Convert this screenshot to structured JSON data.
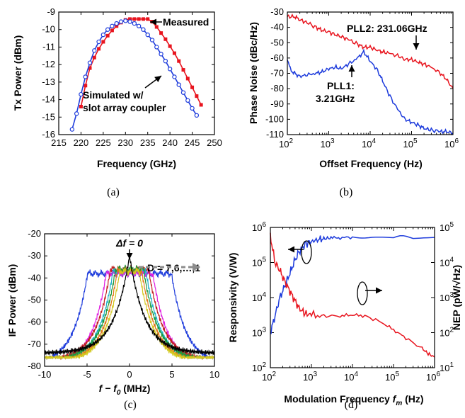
{
  "chart_data": [
    {
      "id": "a",
      "type": "line",
      "caption": "(a)",
      "xlabel": "Frequency (GHz)",
      "ylabel": "Tx Power (dBm)",
      "xlim": [
        215,
        250
      ],
      "ylim": [
        -16,
        -9
      ],
      "xticks": [
        "215",
        "220",
        "225",
        "230",
        "235",
        "240",
        "245",
        "250"
      ],
      "yticks": [
        "-9",
        "-10",
        "-11",
        "-12",
        "-13",
        "-14",
        "-15",
        "-16"
      ],
      "series": [
        {
          "name": "Measured",
          "color": "#e8141e",
          "marker": "square",
          "x": [
            220,
            221,
            222,
            223,
            224,
            225,
            226,
            227,
            228,
            229,
            230,
            231,
            232,
            233,
            234,
            235,
            236,
            237,
            238,
            239,
            240,
            241,
            242,
            243,
            244,
            245,
            246,
            247
          ],
          "y": [
            -14.4,
            -13.2,
            -12.2,
            -11.6,
            -11.1,
            -10.7,
            -10.35,
            -10.05,
            -9.8,
            -9.6,
            -9.45,
            -9.4,
            -9.4,
            -9.4,
            -9.4,
            -9.4,
            -9.55,
            -9.85,
            -10.2,
            -10.55,
            -10.95,
            -11.35,
            -11.8,
            -12.3,
            -12.8,
            -13.3,
            -13.8,
            -14.3
          ]
        },
        {
          "name": "Simulated w/ slot array coupler",
          "color": "#1e3cdc",
          "marker": "circle",
          "x": [
            218,
            219,
            220,
            221,
            222,
            223,
            224,
            225,
            226,
            227,
            228,
            229,
            230,
            231,
            232,
            233,
            234,
            235,
            236,
            237,
            238,
            239,
            240,
            241,
            242,
            243,
            244,
            245,
            246
          ],
          "y": [
            -15.7,
            -14.8,
            -13.7,
            -12.7,
            -11.9,
            -11.2,
            -10.7,
            -10.3,
            -10.0,
            -9.8,
            -9.65,
            -9.55,
            -9.5,
            -9.55,
            -9.65,
            -9.8,
            -10.0,
            -10.3,
            -10.6,
            -11.0,
            -11.4,
            -11.8,
            -12.25,
            -12.7,
            -13.15,
            -13.6,
            -14.05,
            -14.5,
            -14.9
          ]
        }
      ],
      "annotations": [
        "Measured",
        "Simulated w/",
        "slot array coupler"
      ]
    },
    {
      "id": "b",
      "type": "line",
      "caption": "(b)",
      "xlabel": "Offset Frequency (Hz)",
      "ylabel": "Phase Noise (dBc/Hz)",
      "xscale": "log",
      "xlim": [
        100,
        1000000
      ],
      "ylim": [
        -110,
        -30
      ],
      "xticks": [
        "10^2",
        "10^3",
        "10^4",
        "10^5",
        "10^6"
      ],
      "yticks": [
        "-30",
        "-40",
        "-50",
        "-60",
        "-70",
        "-80",
        "-90",
        "-100",
        "-110"
      ],
      "series": [
        {
          "name": "PLL2: 231.06GHz",
          "color": "#e8141e",
          "x": [
            100,
            150,
            200,
            300,
            500,
            700,
            1000,
            1500,
            2000,
            3000,
            5000,
            7000,
            10000,
            15000,
            20000,
            30000,
            50000,
            70000,
            100000,
            150000,
            200000,
            300000,
            500000,
            700000,
            1000000
          ],
          "y": [
            -33,
            -33,
            -35,
            -37,
            -40,
            -42,
            -43,
            -45,
            -46,
            -48,
            -51,
            -53,
            -53,
            -55,
            -56,
            -57,
            -59,
            -61,
            -61,
            -63,
            -64,
            -66,
            -70,
            -74,
            -80
          ]
        },
        {
          "name": "PLL1: 3.21GHz",
          "color": "#1e3cdc",
          "x": [
            100,
            120,
            150,
            200,
            300,
            500,
            700,
            1000,
            1500,
            2000,
            3000,
            5000,
            7000,
            10000,
            15000,
            20000,
            30000,
            50000,
            70000,
            100000,
            150000,
            200000,
            300000,
            500000,
            700000,
            1000000
          ],
          "y": [
            -60,
            -68,
            -70,
            -72,
            -71,
            -70,
            -69,
            -67,
            -66,
            -67,
            -64,
            -60,
            -56,
            -62,
            -68,
            -75,
            -85,
            -95,
            -100,
            -102,
            -104,
            -106,
            -107,
            -108,
            -108,
            -109
          ]
        }
      ],
      "annotations": [
        "PLL2: 231.06GHz",
        "PLL1:",
        "3.21GHz"
      ]
    },
    {
      "id": "c",
      "type": "line",
      "caption": "(c)",
      "xlabel_main": "f − f",
      "xlabel_sub": "0",
      "xlabel_unit": " (MHz)",
      "ylabel": "IF Power (dBm)",
      "xlim": [
        -10,
        10
      ],
      "ylim": [
        -80,
        -20
      ],
      "xticks": [
        "-10",
        "-5",
        "0",
        "5",
        "10"
      ],
      "yticks": [
        "-20",
        "-30",
        "-40",
        "-50",
        "-60",
        "-70",
        "-80"
      ],
      "series_params": [
        {
          "name": "Δf = 0",
          "color": "#000000",
          "shoulder": 0,
          "peak": -30
        },
        {
          "name": "D = 1",
          "color": "#d2c81e",
          "shoulder": 1.1,
          "peak": -36
        },
        {
          "name": "D = 2",
          "color": "#e07a1a",
          "shoulder": 1.4,
          "peak": -36
        },
        {
          "name": "D = 3",
          "color": "#1e9a3a",
          "shoulder": 1.6,
          "peak": -35
        },
        {
          "name": "D = 4",
          "color": "#20b0c8",
          "shoulder": 1.9,
          "peak": -36
        },
        {
          "name": "D = 5",
          "color": "#c02020",
          "shoulder": 2.2,
          "peak": -35
        },
        {
          "name": "D = 6",
          "color": "#e020e0",
          "shoulder": 2.7,
          "peak": -37
        },
        {
          "name": "D = 7",
          "color": "#1e3cdc",
          "shoulder": 4.9,
          "peak": -37
        }
      ],
      "annotations": [
        "Δf = 0",
        "D = 7,6,…,1"
      ]
    },
    {
      "id": "d",
      "type": "line",
      "caption": "(d)",
      "xlabel_main": "Modulation Frequency ",
      "xlabel_var": "f",
      "xlabel_sub": "m",
      "xlabel_unit": " (Hz)",
      "ylabel": "Responsivity (V/W)",
      "ylabel_right": "NEP (pW/√Hz)",
      "xscale": "log",
      "yscale": "log",
      "xlim": [
        100,
        1000000
      ],
      "ylim": [
        100,
        1000000
      ],
      "ylim_right": [
        10,
        100000
      ],
      "xticks": [
        "10^2",
        "10^3",
        "10^4",
        "10^5",
        "10^6"
      ],
      "yticks": [
        "10^6",
        "10^5",
        "10^4",
        "10^3",
        "10^2"
      ],
      "yticks_right": [
        "10^5",
        "10^4",
        "10^3",
        "10^2",
        "10^1"
      ],
      "series": [
        {
          "name": "Responsivity",
          "color": "#1e3cdc",
          "axis": "left",
          "x": [
            100,
            130,
            170,
            220,
            300,
            400,
            500,
            700,
            1000,
            1500,
            2000,
            3000,
            5000,
            10000,
            30000,
            100000,
            300000,
            1000000
          ],
          "y": [
            1000,
            3000,
            10000,
            20000,
            50000,
            120000,
            200000,
            330000,
            400000,
            450000,
            480000,
            500000,
            510000,
            520000,
            520000,
            520000,
            520000,
            520000
          ]
        },
        {
          "name": "NEP",
          "color": "#e8141e",
          "axis": "right",
          "x": [
            100,
            110,
            130,
            170,
            220,
            300,
            400,
            500,
            700,
            1000,
            2000,
            5000,
            10000,
            20000,
            50000,
            100000,
            200000,
            500000,
            700000,
            1000000
          ],
          "y": [
            60000,
            30000,
            10000,
            6000,
            3000,
            1500,
            800,
            500,
            350,
            320,
            300,
            300,
            320,
            300,
            200,
            120,
            70,
            35,
            25,
            20
          ]
        }
      ],
      "annotations": []
    }
  ]
}
